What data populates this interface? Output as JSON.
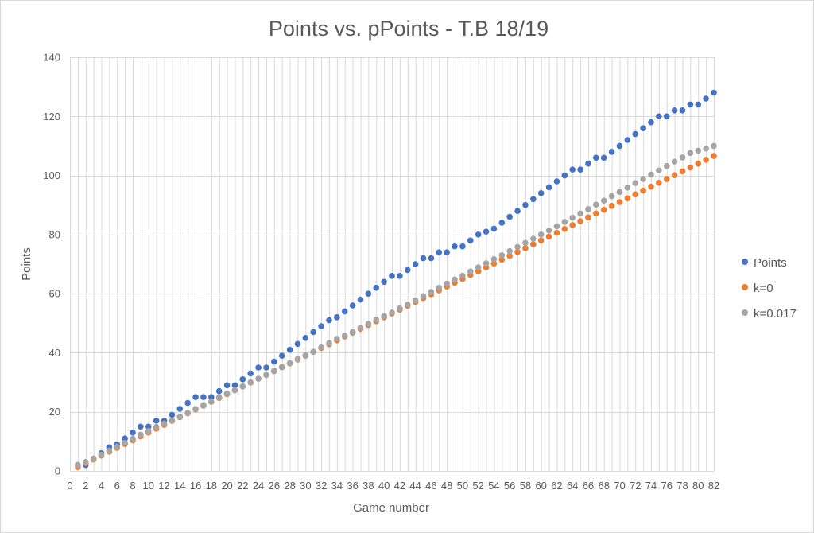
{
  "chart_data": {
    "type": "scatter",
    "title": "Points vs. pPoints - T.B 18/19",
    "xlabel": "Game number",
    "ylabel": "Points",
    "xlim": [
      0,
      82
    ],
    "ylim": [
      0,
      140
    ],
    "xticks": [
      0,
      2,
      4,
      6,
      8,
      10,
      12,
      14,
      16,
      18,
      20,
      22,
      24,
      26,
      28,
      30,
      32,
      34,
      36,
      38,
      40,
      42,
      44,
      46,
      48,
      50,
      52,
      54,
      56,
      58,
      60,
      62,
      64,
      66,
      68,
      70,
      72,
      74,
      76,
      78,
      80,
      82
    ],
    "yticks": [
      0,
      20,
      40,
      60,
      80,
      100,
      120,
      140
    ],
    "grid": "vertical-and-horizontal",
    "legend": "right",
    "series": [
      {
        "name": "Points",
        "color": "#4472C4",
        "values": [
          2,
          2,
          4,
          6,
          8,
          9,
          11,
          13,
          15,
          15,
          17,
          17,
          19,
          21,
          23,
          25,
          25,
          25,
          27,
          29,
          29,
          31,
          33,
          35,
          35,
          37,
          39,
          41,
          43,
          45,
          47,
          49,
          51,
          52,
          54,
          56,
          58,
          60,
          62,
          64,
          66,
          66,
          68,
          70,
          72,
          72,
          74,
          74,
          76,
          76,
          78,
          80,
          81,
          82,
          84,
          86,
          88,
          90,
          92,
          94,
          96,
          98,
          100,
          102,
          102,
          104,
          106,
          106,
          108,
          110,
          112,
          114,
          116,
          118,
          120,
          120,
          122,
          122,
          124,
          124,
          126,
          128
        ]
      },
      {
        "name": "k=0",
        "color": "#ED7D31",
        "values": [
          1.3,
          2.6,
          3.9,
          5.2,
          6.5,
          7.8,
          9.1,
          10.4,
          11.7,
          13,
          14.3,
          15.6,
          16.9,
          18.2,
          19.5,
          20.8,
          22.1,
          23.4,
          24.7,
          26,
          27.3,
          28.6,
          29.9,
          31.2,
          32.5,
          33.8,
          35.1,
          36.4,
          37.7,
          39,
          40.3,
          41.6,
          42.9,
          44.2,
          45.5,
          46.8,
          48.1,
          49.4,
          50.7,
          52,
          53.3,
          54.6,
          55.9,
          57.2,
          58.5,
          59.8,
          61.1,
          62.4,
          63.7,
          65,
          66.3,
          67.6,
          68.9,
          70.2,
          71.5,
          72.8,
          74.1,
          75.4,
          76.7,
          78,
          79.3,
          80.6,
          81.9,
          83.2,
          84.5,
          85.8,
          87.1,
          88.4,
          89.7,
          91,
          92.3,
          93.6,
          94.9,
          96.2,
          97.5,
          98.8,
          100.1,
          101.4,
          102.7,
          104,
          105.3,
          106.6
        ]
      },
      {
        "name": "k=0.017",
        "color": "#A5A5A5",
        "values": [
          2,
          3,
          4.2,
          5.5,
          6.9,
          8.2,
          9.5,
          10.9,
          12.3,
          13.5,
          14.9,
          16,
          17,
          18.4,
          19.6,
          21,
          22.3,
          23.5,
          25,
          26.2,
          27.3,
          28.6,
          30,
          31.2,
          32.5,
          34,
          35.2,
          36.5,
          37.9,
          39.1,
          40.3,
          41.8,
          43.3,
          44.7,
          45.8,
          47,
          48.5,
          49.8,
          51.2,
          52.4,
          53.6,
          55,
          56.3,
          57.7,
          59.2,
          60.6,
          62,
          63.4,
          64.8,
          66.1,
          67.5,
          68.9,
          70.3,
          71.7,
          73,
          74.4,
          75.8,
          77.2,
          78.6,
          80,
          81.4,
          82.8,
          84.3,
          85.7,
          87.1,
          88.6,
          90.1,
          91.5,
          93,
          94.4,
          95.9,
          97.4,
          98.8,
          100.3,
          101.7,
          103.2,
          104.7,
          106.1,
          107.6,
          108.4,
          109.1,
          110
        ]
      }
    ]
  }
}
